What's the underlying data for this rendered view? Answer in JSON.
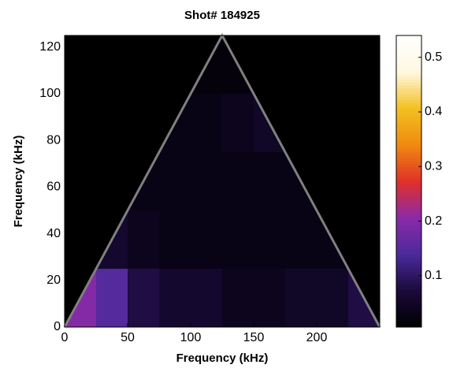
{
  "chart_data": {
    "type": "heatmap",
    "title": "Shot# 184925",
    "xlabel": "Frequency (kHz)",
    "ylabel": "Frequency (kHz)",
    "xbins": [
      0,
      25,
      50,
      75,
      100,
      125,
      150,
      175,
      200,
      225,
      250
    ],
    "ybins": [
      0,
      25,
      50,
      75,
      100,
      125
    ],
    "values": [
      [
        0.2,
        0.15,
        0.08,
        0.06,
        0.06,
        0.04,
        0.04,
        0.05,
        0.05,
        0.08
      ],
      [
        null,
        0.06,
        0.04,
        0.03,
        0.03,
        0.03,
        0.03,
        0.03,
        0.03,
        null
      ],
      [
        null,
        null,
        0.03,
        0.03,
        0.03,
        0.03,
        0.03,
        0.03,
        null,
        null
      ],
      [
        null,
        null,
        null,
        0.03,
        0.03,
        0.04,
        0.05,
        null,
        null,
        null
      ],
      [
        null,
        null,
        null,
        null,
        0.02,
        0.02,
        null,
        null,
        null,
        null
      ]
    ],
    "xlim": [
      0,
      250
    ],
    "ylim": [
      0,
      125
    ],
    "xticks": [
      0,
      50,
      100,
      150,
      200
    ],
    "yticks": [
      0,
      20,
      40,
      60,
      80,
      100,
      120
    ],
    "clim": [
      0.006,
      0.54
    ],
    "cticks": [
      0.1,
      0.2,
      0.3,
      0.4,
      0.5
    ],
    "colormap": [
      "#000000",
      "#1a0a3a",
      "#4b2a9a",
      "#8a2aa8",
      "#e0302a",
      "#f08a10",
      "#f2c020",
      "#fff8e0",
      "#ffffff"
    ],
    "background": "#000000",
    "outline_color": "#808080"
  }
}
